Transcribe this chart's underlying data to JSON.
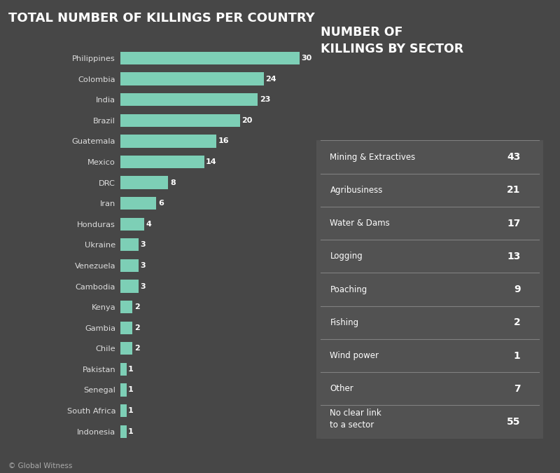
{
  "title": "TOTAL NUMBER OF KILLINGS PER COUNTRY",
  "background_color": "#474747",
  "bar_color": "#7dcfb6",
  "text_color": "#ffffff",
  "label_color": "#dddddd",
  "countries": [
    "Philippines",
    "Colombia",
    "India",
    "Brazil",
    "Guatemala",
    "Mexico",
    "DRC",
    "Iran",
    "Honduras",
    "Ukraine",
    "Venezuela",
    "Cambodia",
    "Kenya",
    "Gambia",
    "Chile",
    "Pakistan",
    "Senegal",
    "South Africa",
    "Indonesia"
  ],
  "values": [
    30,
    24,
    23,
    20,
    16,
    14,
    8,
    6,
    4,
    3,
    3,
    3,
    2,
    2,
    2,
    1,
    1,
    1,
    1
  ],
  "sector_title_line1": "NUMBER OF",
  "sector_title_line2": "KILLINGS BY SECTOR",
  "sector_labels": [
    "Mining & Extractives",
    "Agribusiness",
    "Water & Dams",
    "Logging",
    "Poaching",
    "Fishing",
    "Wind power",
    "Other",
    "No clear link\nto a sector"
  ],
  "sector_values": [
    43,
    21,
    17,
    13,
    9,
    2,
    1,
    7,
    55
  ],
  "footer": "© Global Witness",
  "table_bg_color": "#525252",
  "line_color": "#808080"
}
